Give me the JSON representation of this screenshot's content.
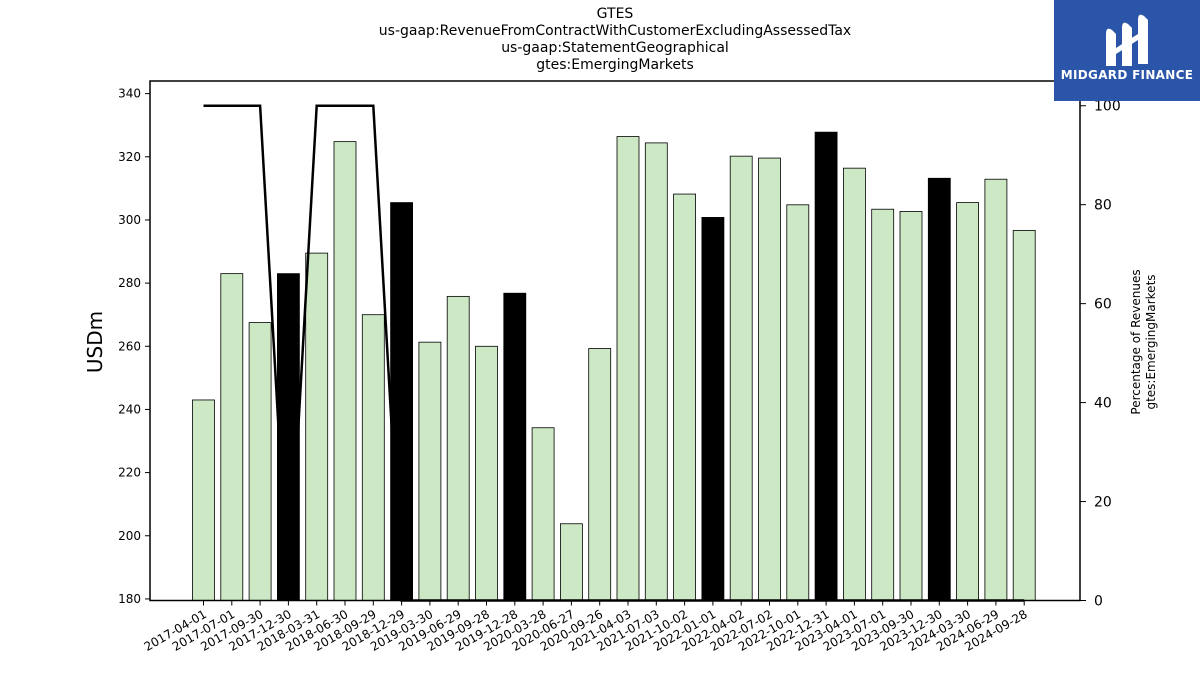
{
  "header": {
    "title_lines": [
      "GTES",
      "us-gaap:RevenueFromContractWithCustomerExcludingAssessedTax",
      "us-gaap:StatementGeographical",
      "gtes:EmergingMarkets"
    ]
  },
  "logo": {
    "text": "MIDGARD FINANCE",
    "background": "#2a55a8",
    "icon": "midgard-m-logo-icon"
  },
  "chart_data": {
    "type": "bar",
    "categories": [
      "2017-04-01",
      "2017-07-01",
      "2017-09-30",
      "2017-12-30",
      "2018-03-31",
      "2018-06-30",
      "2018-09-29",
      "2018-12-29",
      "2019-03-30",
      "2019-06-29",
      "2019-09-28",
      "2019-12-28",
      "2020-03-28",
      "2020-06-27",
      "2020-09-26",
      "2021-04-03",
      "2021-07-03",
      "2021-10-02",
      "2022-01-01",
      "2022-04-02",
      "2022-07-02",
      "2022-10-01",
      "2022-12-31",
      "2023-04-01",
      "2023-07-01",
      "2023-09-30",
      "2023-12-30",
      "2024-03-30",
      "2024-06-29",
      "2024-09-28"
    ],
    "series": [
      {
        "axis": "left",
        "values": [
          243.0,
          283.0,
          267.5,
          283.0,
          289.5,
          324.8,
          270.0,
          305.5,
          261.3,
          275.8,
          260.0,
          276.8,
          234.2,
          203.8,
          259.3,
          326.4,
          324.4,
          308.2,
          300.8,
          320.2,
          319.6,
          304.8,
          327.8,
          316.4,
          303.4,
          302.7,
          313.2,
          305.5,
          312.9,
          296.7
        ],
        "colors": [
          "#cde8c5",
          "#cde8c5",
          "#cde8c5",
          "#000000",
          "#cde8c5",
          "#cde8c5",
          "#cde8c5",
          "#000000",
          "#cde8c5",
          "#cde8c5",
          "#cde8c5",
          "#000000",
          "#cde8c5",
          "#cde8c5",
          "#cde8c5",
          "#cde8c5",
          "#cde8c5",
          "#cde8c5",
          "#000000",
          "#cde8c5",
          "#cde8c5",
          "#cde8c5",
          "#000000",
          "#cde8c5",
          "#cde8c5",
          "#cde8c5",
          "#000000",
          "#cde8c5",
          "#cde8c5",
          "#cde8c5"
        ]
      },
      {
        "axis": "right",
        "type": "line",
        "color": "#000000",
        "values": [
          100,
          100,
          100,
          0,
          100,
          100,
          100,
          0,
          0,
          0,
          0,
          0,
          0,
          0,
          0,
          0,
          0,
          0,
          0,
          0,
          0,
          0,
          0,
          0,
          0,
          0,
          0,
          0,
          0,
          0
        ]
      }
    ],
    "ylabel": "USDm",
    "ylim": [
      179.5,
      344
    ],
    "yticks": [
      180,
      200,
      220,
      240,
      260,
      280,
      300,
      320,
      340
    ],
    "ylabel_right": [
      "Percentage of Revenues",
      "gtes:EmergingMarkets"
    ],
    "ylim_right": [
      0,
      105
    ],
    "yticks_right": [
      0,
      20,
      40,
      60,
      80,
      100
    ],
    "grid": false,
    "legend": "none"
  }
}
